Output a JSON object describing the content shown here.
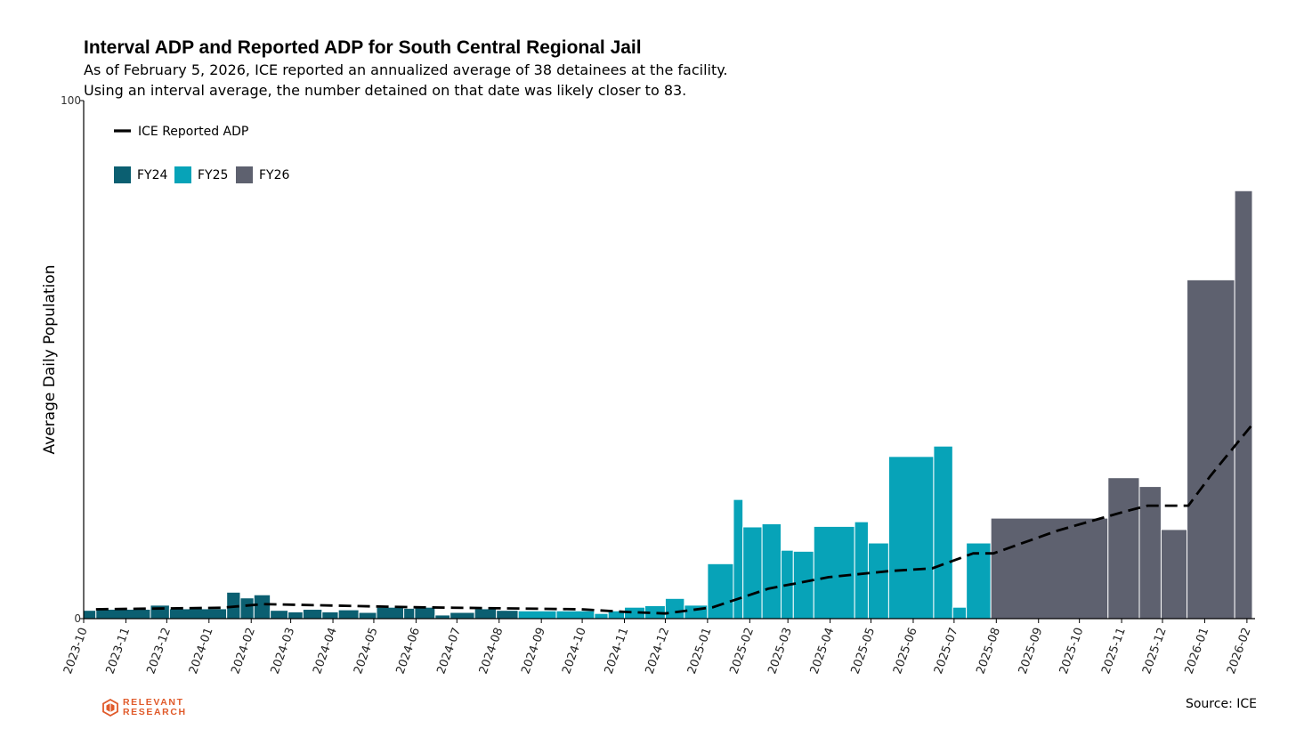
{
  "chart_data": {
    "type": "bar",
    "title": "Interval ADP and Reported ADP for South Central Regional Jail",
    "subtitle_lines": [
      "As of February 5, 2026, ICE reported an annualized average of 38 detainees at the facility.",
      "Using an interval average, the number detained on that date was likely closer to 83."
    ],
    "ylabel": "Average Daily Population",
    "xlabel": "",
    "ylim": [
      0,
      100
    ],
    "yticks": [
      "0",
      "100"
    ],
    "xticks": [
      "2023-10",
      "2023-11",
      "2023-12",
      "2024-01",
      "2024-02",
      "2024-03",
      "2024-04",
      "2024-05",
      "2024-06",
      "2024-07",
      "2024-08",
      "2024-09",
      "2024-10",
      "2024-11",
      "2024-12",
      "2025-01",
      "2025-02",
      "2025-03",
      "2025-04",
      "2025-05",
      "2025-06",
      "2025-07",
      "2025-08",
      "2025-09",
      "2025-10",
      "2025-11",
      "2025-12",
      "2026-01",
      "2026-02"
    ],
    "legend": {
      "placement": "top-left",
      "line_label": "ICE Reported ADP",
      "bar_labels": [
        "FY24",
        "FY25",
        "FY26"
      ]
    },
    "colors": {
      "FY24": "#0b5f71",
      "FY25": "#07a3b8",
      "FY26": "#5e616f",
      "line": "#000000"
    },
    "bars": [
      {
        "start": "2023-10-01",
        "end": "2023-10-10",
        "value": 1.6,
        "fy": "FY24"
      },
      {
        "start": "2023-10-10",
        "end": "2023-11-19",
        "value": 1.8,
        "fy": "FY24"
      },
      {
        "start": "2023-11-19",
        "end": "2023-12-03",
        "value": 2.6,
        "fy": "FY24"
      },
      {
        "start": "2023-12-03",
        "end": "2024-01-14",
        "value": 1.9,
        "fy": "FY24"
      },
      {
        "start": "2024-01-14",
        "end": "2024-01-24",
        "value": 5.1,
        "fy": "FY24"
      },
      {
        "start": "2024-01-24",
        "end": "2024-02-03",
        "value": 4.0,
        "fy": "FY24"
      },
      {
        "start": "2024-02-03",
        "end": "2024-02-15",
        "value": 4.6,
        "fy": "FY24"
      },
      {
        "start": "2024-02-15",
        "end": "2024-02-28",
        "value": 1.6,
        "fy": "FY24"
      },
      {
        "start": "2024-02-28",
        "end": "2024-03-10",
        "value": 1.3,
        "fy": "FY24"
      },
      {
        "start": "2024-03-10",
        "end": "2024-03-24",
        "value": 1.8,
        "fy": "FY24"
      },
      {
        "start": "2024-03-24",
        "end": "2024-04-05",
        "value": 1.3,
        "fy": "FY24"
      },
      {
        "start": "2024-04-05",
        "end": "2024-04-20",
        "value": 1.7,
        "fy": "FY24"
      },
      {
        "start": "2024-04-20",
        "end": "2024-05-03",
        "value": 1.2,
        "fy": "FY24"
      },
      {
        "start": "2024-05-03",
        "end": "2024-05-23",
        "value": 2.2,
        "fy": "FY24"
      },
      {
        "start": "2024-05-23",
        "end": "2024-05-31",
        "value": 2.0,
        "fy": "FY24"
      },
      {
        "start": "2024-05-31",
        "end": "2024-06-15",
        "value": 2.2,
        "fy": "FY24"
      },
      {
        "start": "2024-06-15",
        "end": "2024-06-26",
        "value": 0.7,
        "fy": "FY24"
      },
      {
        "start": "2024-06-26",
        "end": "2024-07-14",
        "value": 1.2,
        "fy": "FY24"
      },
      {
        "start": "2024-07-14",
        "end": "2024-07-30",
        "value": 1.9,
        "fy": "FY24"
      },
      {
        "start": "2024-07-30",
        "end": "2024-08-15",
        "value": 1.6,
        "fy": "FY24"
      },
      {
        "start": "2024-08-15",
        "end": "2024-09-12",
        "value": 1.5,
        "fy": "FY25"
      },
      {
        "start": "2024-09-12",
        "end": "2024-10-10",
        "value": 1.5,
        "fy": "FY25"
      },
      {
        "start": "2024-10-10",
        "end": "2024-10-20",
        "value": 1.0,
        "fy": "FY25"
      },
      {
        "start": "2024-10-20",
        "end": "2024-11-01",
        "value": 1.5,
        "fy": "FY25"
      },
      {
        "start": "2024-11-01",
        "end": "2024-11-16",
        "value": 2.2,
        "fy": "FY25"
      },
      {
        "start": "2024-11-16",
        "end": "2024-12-01",
        "value": 2.5,
        "fy": "FY25"
      },
      {
        "start": "2024-12-01",
        "end": "2024-12-15",
        "value": 3.9,
        "fy": "FY25"
      },
      {
        "start": "2024-12-15",
        "end": "2025-01-01",
        "value": 2.6,
        "fy": "FY25"
      },
      {
        "start": "2025-01-01",
        "end": "2025-01-20",
        "value": 10.6,
        "fy": "FY25"
      },
      {
        "start": "2025-01-20",
        "end": "2025-01-27",
        "value": 23.0,
        "fy": "FY25"
      },
      {
        "start": "2025-01-27",
        "end": "2025-02-10",
        "value": 17.7,
        "fy": "FY25"
      },
      {
        "start": "2025-02-10",
        "end": "2025-02-24",
        "value": 18.3,
        "fy": "FY25"
      },
      {
        "start": "2025-02-24",
        "end": "2025-03-05",
        "value": 13.2,
        "fy": "FY25"
      },
      {
        "start": "2025-03-05",
        "end": "2025-03-20",
        "value": 13.0,
        "fy": "FY25"
      },
      {
        "start": "2025-03-20",
        "end": "2025-04-19",
        "value": 17.8,
        "fy": "FY25"
      },
      {
        "start": "2025-04-19",
        "end": "2025-04-29",
        "value": 18.7,
        "fy": "FY25"
      },
      {
        "start": "2025-04-29",
        "end": "2025-05-14",
        "value": 14.6,
        "fy": "FY25"
      },
      {
        "start": "2025-05-14",
        "end": "2025-06-16",
        "value": 31.3,
        "fy": "FY25"
      },
      {
        "start": "2025-06-16",
        "end": "2025-06-30",
        "value": 33.3,
        "fy": "FY25"
      },
      {
        "start": "2025-06-30",
        "end": "2025-07-10",
        "value": 2.2,
        "fy": "FY25"
      },
      {
        "start": "2025-07-10",
        "end": "2025-07-28",
        "value": 14.6,
        "fy": "FY25"
      },
      {
        "start": "2025-07-28",
        "end": "2025-10-22",
        "value": 19.4,
        "fy": "FY26"
      },
      {
        "start": "2025-10-22",
        "end": "2025-11-14",
        "value": 27.2,
        "fy": "FY26"
      },
      {
        "start": "2025-11-14",
        "end": "2025-11-30",
        "value": 25.5,
        "fy": "FY26"
      },
      {
        "start": "2025-11-30",
        "end": "2025-12-19",
        "value": 17.2,
        "fy": "FY26"
      },
      {
        "start": "2025-12-19",
        "end": "2026-01-23",
        "value": 65.4,
        "fy": "FY26"
      },
      {
        "start": "2026-01-23",
        "end": "2026-02-05",
        "value": 82.6,
        "fy": "FY26"
      }
    ],
    "series": [
      {
        "name": "ICE Reported ADP",
        "x": [
          "2023-10-10",
          "2023-11-10",
          "2024-01-10",
          "2024-02-10",
          "2024-05-31",
          "2024-09-30",
          "2024-11-01",
          "2024-12-01",
          "2025-01-05",
          "2025-02-15",
          "2025-03-31",
          "2025-05-15",
          "2025-06-15",
          "2025-07-15",
          "2025-07-30",
          "2025-09-15",
          "2025-11-01",
          "2025-11-20",
          "2025-12-20",
          "2026-01-05",
          "2026-02-05"
        ],
        "values": [
          1.8,
          1.9,
          2.1,
          2.8,
          2.2,
          1.8,
          1.3,
          1.0,
          2.2,
          5.8,
          8.0,
          9.2,
          9.7,
          12.6,
          12.6,
          17.0,
          20.5,
          21.8,
          21.8,
          27.5,
          37.5
        ]
      }
    ]
  },
  "source": "Source: ICE",
  "logo": {
    "line1": "RELEVANT",
    "line2": "RESEARCH",
    "color": "#e05a2a"
  }
}
